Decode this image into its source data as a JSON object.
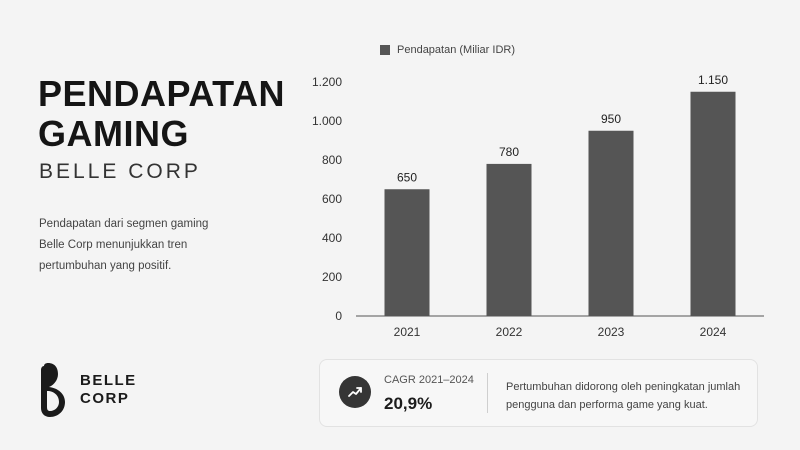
{
  "header": {
    "title_line1": "PENDAPATAN",
    "title_line2": "GAMING",
    "subtitle": "BELLE CORP"
  },
  "description": {
    "line1": "Pendapatan dari segmen gaming",
    "line2": "Belle Corp menunjukkan tren",
    "line3": "pertumbuhan yang positif."
  },
  "logo": {
    "line1": "BELLE",
    "line2": "CORP"
  },
  "chart_data": {
    "type": "bar",
    "categories": [
      "2021",
      "2022",
      "2023",
      "2024"
    ],
    "series": [
      {
        "name": "Pendapatan (Miliar IDR)",
        "values": [
          650,
          780,
          950,
          1150
        ],
        "color": "#555555"
      }
    ],
    "data_labels": [
      "650",
      "780",
      "950",
      "1.150"
    ],
    "ylim": [
      0,
      1200
    ],
    "yticks": [
      0,
      200,
      400,
      600,
      800,
      1000,
      1200
    ],
    "ytick_labels": [
      "0",
      "200",
      "400",
      "600",
      "800",
      "1.000",
      "1.200"
    ],
    "grid": false,
    "legend_position": "top"
  },
  "insight": {
    "metric_label": "CAGR 2021–2024",
    "metric_value": "20,9%",
    "note_line1": "Pertumbuhan didorong oleh peningkatan jumlah",
    "note_line2": "pengguna dan performa game yang kuat."
  },
  "colors": {
    "bar": "#555555",
    "icon_bg": "#353535",
    "background": "#f4f4f4"
  },
  "icons": {
    "insight": "trending-up-icon",
    "logo": "belle-corp-logo-icon"
  }
}
